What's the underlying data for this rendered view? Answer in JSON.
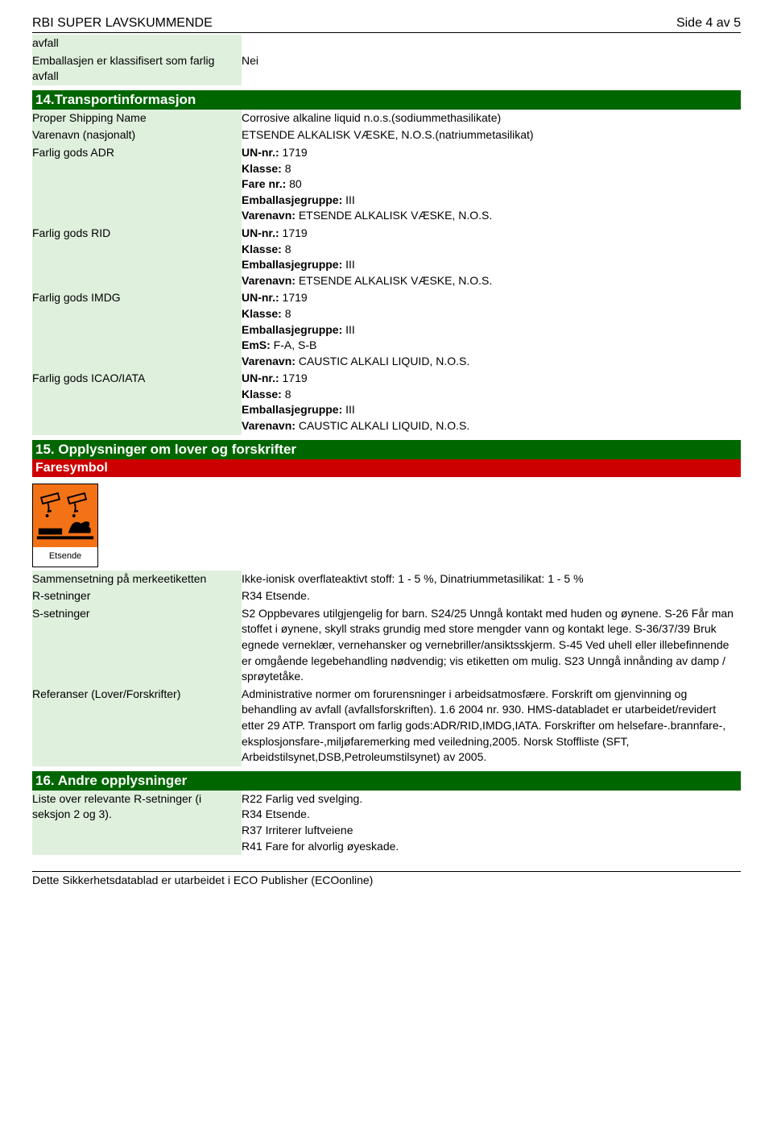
{
  "header": {
    "doc_title": "RBI SUPER LAVSKUMMENDE",
    "page_info": "Side 4 av 5"
  },
  "rows_top": [
    {
      "label": "avfall",
      "value": ""
    },
    {
      "label": "Emballasjen er klassifisert som farlig avfall",
      "value": "Nei"
    }
  ],
  "section14": {
    "title": "14.Transportinformasjon",
    "rows": [
      {
        "label": "Proper Shipping Name",
        "value": "Corrosive alkaline liquid n.o.s.(sodiummethasilikate)"
      },
      {
        "label": "Varenavn (nasjonalt)",
        "value": "ETSENDE ALKALISK VÆSKE, N.O.S.(natriummetasilikat)"
      },
      {
        "label": "Farlig gods ADR",
        "value": "UN-nr.: 1719\nKlasse: 8\nFare nr.: 80\nEmballasjegruppe: III\nVarenavn: ETSENDE ALKALISK VÆSKE, N.O.S."
      },
      {
        "label": "Farlig gods RID",
        "value": "UN-nr.: 1719\nKlasse: 8\nEmballasjegruppe: III\nVarenavn: ETSENDE ALKALISK VÆSKE, N.O.S."
      },
      {
        "label": "Farlig gods IMDG",
        "value": "UN-nr.: 1719\nKlasse: 8\nEmballasjegruppe: III\nEmS: F-A, S-B\nVarenavn: CAUSTIC ALKALI LIQUID, N.O.S."
      },
      {
        "label": "Farlig gods ICAO/IATA",
        "value": "UN-nr.: 1719\nKlasse: 8\nEmballasjegruppe: III\nVarenavn: CAUSTIC ALKALI LIQUID, N.O.S."
      }
    ]
  },
  "section15": {
    "title": "15. Opplysninger om lover og forskrifter",
    "subheader": "Faresymbol",
    "hazard_label": "Etsende",
    "rows": [
      {
        "label": "Sammensetning på merkeetiketten",
        "value": "Ikke-ionisk overflateaktivt stoff: 1 - 5 %, Dinatriummetasilikat: 1 - 5 %"
      },
      {
        "label": "R-setninger",
        "value": "R34 Etsende."
      },
      {
        "label": "S-setninger",
        "value": "S2 Oppbevares utilgjengelig for barn. S24/25 Unngå kontakt med huden og øynene. S-26 Får man stoffet i øynene, skyll straks grundig med store mengder vann og kontakt lege. S-36/37/39 Bruk egnede verneklær, vernehansker og vernebriller/ansiktsskjerm. S-45 Ved uhell eller illebefinnende er omgående legebehandling nødvendig; vis etiketten om mulig. S23 Unngå innånding av damp / sprøytetåke."
      },
      {
        "label": "Referanser (Lover/Forskrifter)",
        "value": "Administrative normer om forurensninger i arbeidsatmosfære. Forskrift om gjenvinning og behandling av avfall (avfallsforskriften). 1.6 2004 nr. 930. HMS-databladet er utarbeidet/revidert etter 29 ATP. Transport om farlig gods:ADR/RID,IMDG,IATA. Forskrifter om helsefare-.brannfare-, eksplosjonsfare-,miljøfaremerking med veiledning,2005. Norsk Stoffliste (SFT, Arbeidstilsynet,DSB,Petroleumstilsynet) av 2005."
      }
    ]
  },
  "section16": {
    "title": "16. Andre opplysninger",
    "rows": [
      {
        "label": "Liste over relevante R-setninger (i seksjon 2 og 3).",
        "value": "R22 Farlig ved svelging.\nR34 Etsende.\nR37 Irriterer luftveiene\nR41 Fare for alvorlig øyeskade."
      }
    ]
  },
  "footer": {
    "text": "Dette Sikkerhetsdatablad er utarbeidet i ECO Publisher (ECOonline)"
  },
  "colors": {
    "section_bg": "#006600",
    "sub_bg": "#cc0000",
    "label_bg": "#dff0dd",
    "hazard_bg": "#f47216"
  }
}
